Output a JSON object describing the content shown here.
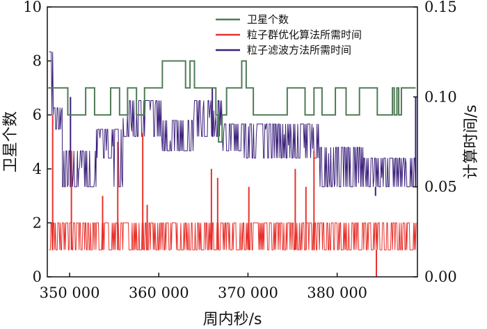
{
  "chart_data": {
    "type": "line",
    "xlabel": "周内秒/s",
    "ylabel_left": "卫星个数",
    "ylabel_right": "计算时间/s",
    "xlim": [
      347500,
      389000
    ],
    "ylim_left": [
      0,
      10
    ],
    "ylim_right": [
      0,
      0.15
    ],
    "x_ticks": [
      350000,
      360000,
      370000,
      380000
    ],
    "x_tick_labels": [
      "350 000",
      "360 000",
      "370 000",
      "380 000"
    ],
    "y_left_ticks": [
      0,
      2,
      4,
      6,
      8,
      10
    ],
    "y_left_tick_labels": [
      "0",
      "2",
      "4",
      "6",
      "8",
      "10"
    ],
    "y_right_ticks": [
      0.0,
      0.05,
      0.1,
      0.15
    ],
    "y_right_tick_labels": [
      "0.00",
      "0.05",
      "0.10",
      "0.15"
    ],
    "legend": {
      "placement": "top-right"
    },
    "series": [
      {
        "name": "卫星个数",
        "axis": "left",
        "color": "#4f7a55",
        "mode": "step",
        "x": [
          347600,
          349800,
          351800,
          352800,
          354600,
          355600,
          356500,
          357500,
          358400,
          358900,
          360400,
          363000,
          363500,
          364000,
          364400,
          366400,
          366700,
          367100,
          367600,
          368300,
          369300,
          369800,
          370600,
          371600,
          373000,
          374400,
          376400,
          377400,
          378300,
          379800,
          381000,
          382500,
          384500,
          386200,
          386400,
          386700,
          386900,
          387200,
          388800
        ],
        "values": [
          7,
          6,
          7,
          6,
          7,
          6,
          7,
          6,
          7,
          7,
          8,
          7,
          8,
          7,
          7,
          6,
          5,
          6,
          7,
          7,
          8,
          7,
          6,
          6,
          6,
          7,
          6,
          7,
          6,
          7,
          6,
          7,
          6,
          7,
          6,
          7,
          6,
          7,
          7
        ]
      },
      {
        "name": "粒子群优化算法所需时间",
        "axis": "right",
        "color": "#e8312b",
        "base": [
          0.015,
          0.03
        ],
        "x_range": [
          347700,
          388900
        ],
        "spikes": [
          {
            "x": 348100,
            "value": 0.09
          },
          {
            "x": 350200,
            "value": 0.07
          },
          {
            "x": 353700,
            "value": 0.045
          },
          {
            "x": 355400,
            "value": 0.075
          },
          {
            "x": 358200,
            "value": 0.08
          },
          {
            "x": 358700,
            "value": 0.04
          },
          {
            "x": 365900,
            "value": 0.06
          },
          {
            "x": 366600,
            "value": 0.055
          },
          {
            "x": 370100,
            "value": 0.05
          },
          {
            "x": 375300,
            "value": 0.06
          },
          {
            "x": 376500,
            "value": 0.05
          },
          {
            "x": 377400,
            "value": 0.07
          },
          {
            "x": 384400,
            "value": 0.0
          }
        ]
      },
      {
        "name": "粒子滤波方法所需时间",
        "axis": "right",
        "color": "#3a1f7a",
        "x_range": [
          347700,
          388900
        ],
        "segments": [
          {
            "x0": 347700,
            "x1": 348200,
            "low": 0.09,
            "high": 0.125
          },
          {
            "x0": 348200,
            "x1": 349200,
            "low": 0.082,
            "high": 0.094
          },
          {
            "x0": 349200,
            "x1": 353000,
            "low": 0.05,
            "high": 0.07
          },
          {
            "x0": 353000,
            "x1": 354900,
            "low": 0.066,
            "high": 0.082
          },
          {
            "x0": 354900,
            "x1": 356000,
            "low": 0.05,
            "high": 0.082
          },
          {
            "x0": 356000,
            "x1": 360400,
            "low": 0.078,
            "high": 0.098
          },
          {
            "x0": 360400,
            "x1": 364000,
            "low": 0.07,
            "high": 0.087
          },
          {
            "x0": 364000,
            "x1": 367200,
            "low": 0.078,
            "high": 0.098
          },
          {
            "x0": 367200,
            "x1": 369500,
            "low": 0.07,
            "high": 0.085
          },
          {
            "x0": 369500,
            "x1": 378000,
            "low": 0.066,
            "high": 0.085
          },
          {
            "x0": 378000,
            "x1": 383000,
            "low": 0.05,
            "high": 0.072
          },
          {
            "x0": 383000,
            "x1": 385500,
            "low": 0.05,
            "high": 0.066
          },
          {
            "x0": 385500,
            "x1": 388900,
            "low": 0.05,
            "high": 0.066
          }
        ],
        "spikes": [
          {
            "x": 350100,
            "value": 0.1
          },
          {
            "x": 366000,
            "value": 0.105
          },
          {
            "x": 384300,
            "value": 0.045
          },
          {
            "x": 388800,
            "value": 0.1
          }
        ]
      }
    ]
  }
}
